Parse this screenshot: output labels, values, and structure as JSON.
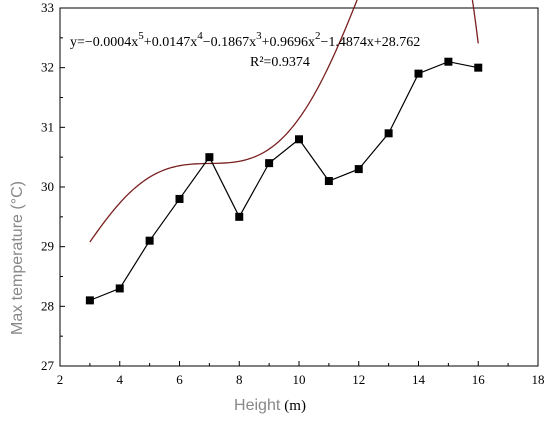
{
  "chart_data": {
    "type": "line",
    "xlabel": "Height",
    "xlabel_unit": "(m)",
    "ylabel": "Max temperature (°C)",
    "xlim": [
      2,
      18
    ],
    "ylim": [
      27,
      33
    ],
    "xticks": [
      "2",
      "4",
      "6",
      "8",
      "10",
      "12",
      "14",
      "16",
      "18"
    ],
    "yticks": [
      "27",
      "28",
      "29",
      "30",
      "31",
      "32",
      "33"
    ],
    "grid": false,
    "series": [
      {
        "marker": "square",
        "color": "#000000",
        "x": [
          3,
          4,
          5,
          6,
          7,
          8,
          9,
          10,
          11,
          12,
          13,
          14,
          15,
          16
        ],
        "y": [
          28.1,
          28.3,
          29.1,
          29.8,
          30.5,
          29.5,
          30.4,
          30.8,
          30.1,
          30.3,
          30.9,
          31.9,
          32.1,
          32.0
        ]
      }
    ],
    "fit": {
      "color": "#7a2020",
      "coefficients": [
        -0.0004,
        0.0147,
        -0.1867,
        0.9696,
        -1.4874,
        28.762
      ],
      "x_range": [
        3,
        16
      ],
      "equation_parts": [
        "y=−0.0004x",
        "5",
        "+0.0147x",
        "4",
        "−0.1867x",
        "3",
        "+0.9696x",
        "2",
        "−1.4874x+28.762"
      ],
      "r2_label": "R²=0.9374"
    }
  }
}
